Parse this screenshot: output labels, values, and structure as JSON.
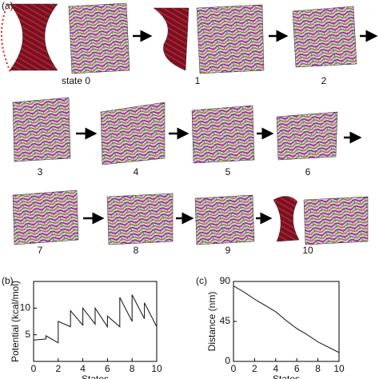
{
  "panel_a": {
    "label": "(a)",
    "states": [
      "state 0",
      "1",
      "2",
      "3",
      "4",
      "5",
      "6",
      "7",
      "8",
      "9",
      "10"
    ]
  },
  "chart_data": [
    {
      "type": "line",
      "panel_label": "(b)",
      "ylabel": "Potential (kcal/mol)",
      "xlabel": "States",
      "color": "#222222",
      "x": [
        0,
        1,
        1,
        2,
        2,
        3,
        3,
        4,
        4,
        5,
        5,
        6,
        6,
        7,
        7,
        8,
        8,
        9,
        9,
        10
      ],
      "values": [
        4,
        4.2,
        4.8,
        3.5,
        7.5,
        6.5,
        9.5,
        6.8,
        10,
        7,
        10,
        6.5,
        8.5,
        6.5,
        12,
        7.5,
        12.5,
        8,
        11,
        6.5
      ],
      "xlim": [
        0,
        10
      ],
      "ylim": [
        0,
        15
      ],
      "xticks": [
        0,
        2,
        4,
        6,
        8,
        10
      ],
      "yticks": [
        5,
        10
      ]
    },
    {
      "type": "line",
      "panel_label": "(c)",
      "ylabel": "Distance (nm)",
      "xlabel": "States",
      "color": "#222222",
      "x": [
        0,
        1,
        2,
        3,
        4,
        5,
        6,
        7,
        8,
        9,
        10
      ],
      "values": [
        85,
        78,
        70,
        63,
        56,
        46,
        37,
        30,
        22,
        16,
        10
      ],
      "xlim": [
        0,
        10
      ],
      "ylim": [
        0,
        90
      ],
      "xticks": [
        0,
        2,
        4,
        6,
        8,
        10
      ],
      "yticks": [
        0,
        45,
        90
      ]
    }
  ]
}
